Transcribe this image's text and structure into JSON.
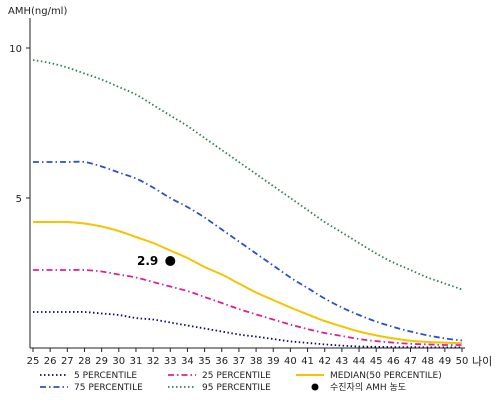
{
  "chart_data": {
    "type": "line",
    "ylabel": "AMH(ng/ml)",
    "xlabel": "나이",
    "xlim": [
      25,
      50
    ],
    "ylim": [
      0,
      11
    ],
    "x_ticks": [
      25,
      26,
      27,
      28,
      29,
      30,
      31,
      32,
      33,
      34,
      35,
      36,
      37,
      38,
      39,
      40,
      41,
      42,
      43,
      44,
      45,
      46,
      47,
      48,
      49,
      50
    ],
    "y_ticks": [
      5,
      10
    ],
    "series": [
      {
        "name": "5 PERCENTILE",
        "color": "#0a0a6e",
        "dash": "dotted",
        "x": [
          25,
          26,
          27,
          28,
          29,
          30,
          31,
          32,
          33,
          34,
          35,
          36,
          37,
          38,
          39,
          40,
          41,
          42,
          43,
          44,
          45,
          46,
          47,
          48,
          49,
          50
        ],
        "y": [
          1.2,
          1.2,
          1.2,
          1.2,
          1.15,
          1.1,
          1.0,
          0.95,
          0.85,
          0.75,
          0.65,
          0.55,
          0.45,
          0.38,
          0.3,
          0.22,
          0.17,
          0.12,
          0.08,
          0.05,
          0.04,
          0.03,
          0.03,
          0.02,
          0.02,
          0.02
        ]
      },
      {
        "name": "25 PERCENTILE",
        "color": "#e0208a",
        "dash": "dashdot",
        "x": [
          25,
          26,
          27,
          28,
          29,
          30,
          31,
          32,
          33,
          34,
          35,
          36,
          37,
          38,
          39,
          40,
          41,
          42,
          43,
          44,
          45,
          46,
          47,
          48,
          49,
          50
        ],
        "y": [
          2.6,
          2.6,
          2.6,
          2.6,
          2.55,
          2.45,
          2.35,
          2.2,
          2.05,
          1.9,
          1.7,
          1.5,
          1.3,
          1.12,
          0.95,
          0.78,
          0.63,
          0.5,
          0.4,
          0.3,
          0.23,
          0.18,
          0.14,
          0.12,
          0.1,
          0.1
        ]
      },
      {
        "name": "MEDIAN(50 PERCENTILE)",
        "color": "#f5c400",
        "dash": "solid",
        "x": [
          25,
          26,
          27,
          28,
          29,
          30,
          31,
          32,
          33,
          34,
          35,
          36,
          37,
          38,
          39,
          40,
          41,
          42,
          43,
          44,
          45,
          46,
          47,
          48,
          49,
          50
        ],
        "y": [
          4.2,
          4.2,
          4.2,
          4.15,
          4.05,
          3.9,
          3.7,
          3.5,
          3.25,
          3.0,
          2.7,
          2.45,
          2.15,
          1.85,
          1.6,
          1.35,
          1.12,
          0.9,
          0.72,
          0.55,
          0.42,
          0.32,
          0.24,
          0.2,
          0.18,
          0.16
        ]
      },
      {
        "name": "75 PERCENTILE",
        "color": "#2b50c8",
        "dash": "dashdot",
        "x": [
          25,
          26,
          27,
          28,
          29,
          30,
          31,
          32,
          33,
          34,
          35,
          36,
          37,
          38,
          39,
          40,
          41,
          42,
          43,
          44,
          45,
          46,
          47,
          48,
          49,
          50
        ],
        "y": [
          6.2,
          6.2,
          6.2,
          6.2,
          6.05,
          5.85,
          5.65,
          5.35,
          5.0,
          4.7,
          4.35,
          3.95,
          3.55,
          3.15,
          2.75,
          2.35,
          2.0,
          1.65,
          1.35,
          1.1,
          0.88,
          0.7,
          0.55,
          0.42,
          0.32,
          0.25
        ]
      },
      {
        "name": "95 PERCENTILE",
        "color": "#2e7d4a",
        "dash": "dotted",
        "x": [
          25,
          26,
          27,
          28,
          29,
          30,
          31,
          32,
          33,
          34,
          35,
          36,
          37,
          38,
          39,
          40,
          41,
          42,
          43,
          44,
          45,
          46,
          47,
          48,
          49,
          50
        ],
        "y": [
          9.6,
          9.5,
          9.35,
          9.15,
          8.95,
          8.7,
          8.45,
          8.1,
          7.75,
          7.4,
          7.0,
          6.6,
          6.2,
          5.8,
          5.4,
          5.0,
          4.6,
          4.2,
          3.85,
          3.5,
          3.15,
          2.85,
          2.6,
          2.35,
          2.15,
          1.95
        ]
      }
    ],
    "point": {
      "name": "수진자의 AMH 농도",
      "x": 33,
      "y": 2.9,
      "label": "2.9",
      "color": "#000000"
    },
    "legend_position": "bottom",
    "grid": false
  }
}
